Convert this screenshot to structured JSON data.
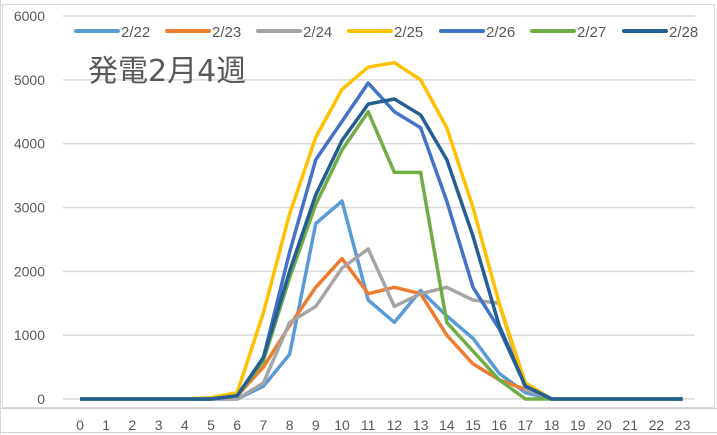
{
  "chart_data": {
    "type": "line",
    "title": "発電2月4週",
    "xlabel": "",
    "ylabel": "",
    "ylim": [
      0,
      6000
    ],
    "yticks": [
      0,
      1000,
      2000,
      3000,
      4000,
      5000,
      6000
    ],
    "grid": true,
    "legend_position": "top",
    "categories": [
      0,
      1,
      2,
      3,
      4,
      5,
      6,
      7,
      8,
      9,
      10,
      11,
      12,
      13,
      14,
      15,
      16,
      17,
      18,
      19,
      20,
      21,
      22,
      23
    ],
    "series": [
      {
        "name": "2/22",
        "color": "#5b9bd5",
        "values": [
          0,
          0,
          0,
          0,
          0,
          0,
          0,
          200,
          700,
          2750,
          3100,
          1550,
          1200,
          1700,
          1300,
          950,
          400,
          100,
          0,
          0,
          0,
          0,
          0,
          0
        ]
      },
      {
        "name": "2/23",
        "color": "#ed7d31",
        "values": [
          0,
          0,
          0,
          0,
          0,
          0,
          50,
          500,
          1150,
          1750,
          2200,
          1650,
          1750,
          1650,
          1000,
          550,
          300,
          150,
          0,
          0,
          0,
          0,
          0,
          0
        ]
      },
      {
        "name": "2/24",
        "color": "#a5a5a5",
        "values": [
          0,
          0,
          0,
          0,
          0,
          0,
          0,
          250,
          1200,
          1450,
          2050,
          2350,
          1450,
          1650,
          1750,
          1550,
          1500,
          150,
          0,
          0,
          0,
          0,
          0,
          0
        ]
      },
      {
        "name": "2/25",
        "color": "#ffc000",
        "values": [
          0,
          0,
          0,
          0,
          0,
          20,
          100,
          1350,
          2900,
          4100,
          4850,
          5200,
          5270,
          5000,
          4250,
          3000,
          1500,
          250,
          0,
          0,
          0,
          0,
          0,
          0
        ]
      },
      {
        "name": "2/26",
        "color": "#4472c4",
        "values": [
          0,
          0,
          0,
          0,
          0,
          0,
          50,
          650,
          2300,
          3750,
          4350,
          4950,
          4500,
          4250,
          3100,
          1750,
          1100,
          200,
          0,
          0,
          0,
          0,
          0,
          0
        ]
      },
      {
        "name": "2/27",
        "color": "#70ad47",
        "values": [
          0,
          0,
          0,
          0,
          0,
          0,
          50,
          600,
          1900,
          3050,
          3900,
          4500,
          3550,
          3550,
          1200,
          750,
          300,
          0,
          0,
          0,
          0,
          0,
          0,
          0
        ]
      },
      {
        "name": "2/28",
        "color": "#255e91",
        "values": [
          0,
          0,
          0,
          0,
          0,
          0,
          50,
          650,
          2000,
          3200,
          4050,
          4620,
          4700,
          4450,
          3750,
          2550,
          1150,
          200,
          0,
          0,
          0,
          0,
          0,
          0
        ]
      }
    ]
  }
}
